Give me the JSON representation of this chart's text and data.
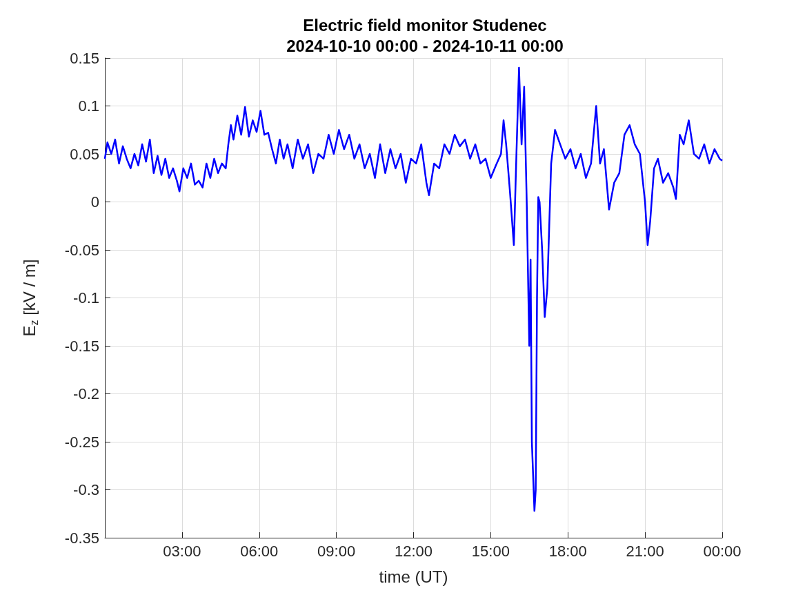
{
  "chart_data": {
    "type": "line",
    "title": "Electric field monitor Studenec\n2024-10-10 00:00 - 2024-10-11 00:00",
    "xlabel": "time (UT)",
    "ylabel": "E$_{z}$ [kV / m]",
    "xlim": [
      0,
      24
    ],
    "xticks": [
      {
        "value": 3,
        "label": "03:00"
      },
      {
        "value": 6,
        "label": "06:00"
      },
      {
        "value": 9,
        "label": "09:00"
      },
      {
        "value": 12,
        "label": "12:00"
      },
      {
        "value": 15,
        "label": "15:00"
      },
      {
        "value": 18,
        "label": "18:00"
      },
      {
        "value": 21,
        "label": "21:00"
      },
      {
        "value": 24,
        "label": "00:00"
      }
    ],
    "ylim": [
      -0.35,
      0.15
    ],
    "yticks": [
      -0.35,
      -0.3,
      -0.25,
      -0.2,
      -0.15,
      -0.1,
      -0.05,
      0,
      0.05,
      0.1,
      0.15
    ],
    "grid": true,
    "marker": "none",
    "line_style": "solid",
    "series": [
      {
        "color": "#0000ff",
        "x": [
          0,
          0.1,
          0.25,
          0.4,
          0.55,
          0.7,
          0.85,
          1.0,
          1.15,
          1.3,
          1.45,
          1.6,
          1.75,
          1.9,
          2.05,
          2.2,
          2.35,
          2.5,
          2.65,
          2.8,
          2.9,
          3.05,
          3.2,
          3.35,
          3.5,
          3.65,
          3.8,
          3.95,
          4.1,
          4.25,
          4.4,
          4.55,
          4.7,
          4.8,
          4.9,
          5.0,
          5.15,
          5.3,
          5.45,
          5.6,
          5.75,
          5.9,
          6.05,
          6.2,
          6.35,
          6.5,
          6.65,
          6.8,
          6.95,
          7.1,
          7.3,
          7.5,
          7.7,
          7.9,
          8.1,
          8.3,
          8.5,
          8.7,
          8.9,
          9.1,
          9.3,
          9.5,
          9.7,
          9.9,
          10.1,
          10.3,
          10.5,
          10.7,
          10.9,
          11.1,
          11.3,
          11.5,
          11.7,
          11.9,
          12.1,
          12.3,
          12.5,
          12.6,
          12.8,
          13.0,
          13.2,
          13.4,
          13.6,
          13.8,
          14.0,
          14.2,
          14.4,
          14.6,
          14.8,
          15.0,
          15.2,
          15.4,
          15.5,
          15.6,
          15.75,
          15.9,
          16.0,
          16.1,
          16.2,
          16.3,
          16.4,
          16.5,
          16.55,
          16.6,
          16.7,
          16.75,
          16.8,
          16.85,
          16.9,
          17.0,
          17.1,
          17.2,
          17.35,
          17.5,
          17.7,
          17.9,
          18.1,
          18.3,
          18.5,
          18.7,
          18.9,
          19.1,
          19.25,
          19.4,
          19.6,
          19.8,
          20.0,
          20.2,
          20.4,
          20.6,
          20.8,
          21.0,
          21.1,
          21.2,
          21.35,
          21.5,
          21.7,
          21.9,
          22.1,
          22.2,
          22.35,
          22.5,
          22.7,
          22.9,
          23.1,
          23.3,
          23.5,
          23.7,
          23.9,
          24
        ],
        "values": [
          0.045,
          0.062,
          0.05,
          0.065,
          0.04,
          0.058,
          0.045,
          0.035,
          0.05,
          0.038,
          0.06,
          0.042,
          0.065,
          0.03,
          0.048,
          0.028,
          0.045,
          0.025,
          0.035,
          0.022,
          0.011,
          0.035,
          0.025,
          0.04,
          0.018,
          0.022,
          0.015,
          0.04,
          0.025,
          0.045,
          0.03,
          0.04,
          0.035,
          0.06,
          0.08,
          0.065,
          0.09,
          0.07,
          0.099,
          0.068,
          0.085,
          0.073,
          0.095,
          0.07,
          0.072,
          0.055,
          0.04,
          0.065,
          0.045,
          0.06,
          0.035,
          0.065,
          0.045,
          0.06,
          0.03,
          0.05,
          0.045,
          0.07,
          0.05,
          0.075,
          0.055,
          0.07,
          0.045,
          0.06,
          0.035,
          0.05,
          0.025,
          0.06,
          0.03,
          0.055,
          0.035,
          0.05,
          0.02,
          0.045,
          0.04,
          0.06,
          0.02,
          0.007,
          0.04,
          0.035,
          0.06,
          0.05,
          0.07,
          0.058,
          0.065,
          0.045,
          0.06,
          0.04,
          0.045,
          0.025,
          0.038,
          0.05,
          0.085,
          0.06,
          0.01,
          -0.045,
          0.05,
          0.14,
          0.06,
          0.12,
          0.0,
          -0.15,
          -0.06,
          -0.25,
          -0.322,
          -0.3,
          -0.1,
          0.005,
          0.0,
          -0.05,
          -0.12,
          -0.09,
          0.04,
          0.075,
          0.06,
          0.045,
          0.055,
          0.035,
          0.05,
          0.025,
          0.04,
          0.1,
          0.04,
          0.055,
          -0.008,
          0.02,
          0.03,
          0.07,
          0.08,
          0.06,
          0.05,
          0.0,
          -0.045,
          -0.02,
          0.035,
          0.045,
          0.02,
          0.03,
          0.015,
          0.003,
          0.07,
          0.06,
          0.085,
          0.05,
          0.045,
          0.06,
          0.04,
          0.055,
          0.045,
          0.043
        ]
      }
    ]
  }
}
